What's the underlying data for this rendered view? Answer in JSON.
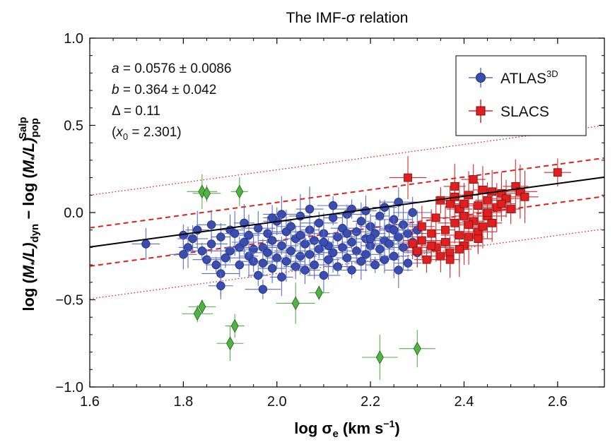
{
  "chart_data": {
    "type": "scatter",
    "title": "The IMF-σ relation",
    "xlabel": "log σ",
    "xlabel_sub": "e",
    "xlabel_unit_pre": " (km s",
    "xlabel_unit_sup": "−1",
    "xlabel_unit_post": ")",
    "ylabel_parts": {
      "log1": "log (",
      "m1": "M",
      "star1": "*",
      "l1": "/L)",
      "sub1": "dyn",
      "minus": " − log (",
      "m2": "M",
      "star2": "*",
      "l2": "/L)",
      "sub2": "pop",
      "sup2": "Salp"
    },
    "xlim": [
      1.6,
      2.7
    ],
    "ylim": [
      -1.0,
      1.0
    ],
    "xticks": [
      1.6,
      1.8,
      2.0,
      2.2,
      2.4,
      2.6
    ],
    "xtick_labels": [
      "1.6",
      "1.8",
      "2.0",
      "2.2",
      "2.4",
      "2.6"
    ],
    "yticks": [
      -1.0,
      -0.5,
      0.0,
      0.5,
      1.0
    ],
    "ytick_labels": [
      "−1.0",
      "−0.5",
      "0.0",
      "0.5",
      "1.0"
    ],
    "annotations": {
      "a_var": "a",
      "a_text": " = 0.0576 ± 0.0086",
      "b_var": "b",
      "b_text": " = 0.364 ± 0.042",
      "delta_text": "Δ = 0.11",
      "x0_open": "(",
      "x0_var": "x",
      "x0_sub": "0",
      "x0_text": " = 2.301)"
    },
    "fit": {
      "a": 0.0576,
      "b": 0.364,
      "x0": 2.301,
      "scatter": 0.11
    },
    "legend": {
      "placement": "top-right"
    },
    "colors": {
      "atlas": "#3b4eb0",
      "atlas_err": "#5a6dcc",
      "slacs": "#e02020",
      "slacs_err": "#d82828",
      "outlier": "#4fb443",
      "fit": "#000000",
      "band1": "#e02020",
      "band2": "#e02020"
    },
    "series": [
      {
        "name_main": "ATLAS",
        "name_sup": "3D",
        "marker": "circle",
        "points": [
          [
            1.72,
            -0.18
          ],
          [
            1.8,
            -0.13
          ],
          [
            1.8,
            -0.24
          ],
          [
            1.81,
            -0.2
          ],
          [
            1.82,
            -0.15
          ],
          [
            1.83,
            -0.1
          ],
          [
            1.84,
            -0.22
          ],
          [
            1.85,
            -0.27
          ],
          [
            1.86,
            -0.18
          ],
          [
            1.86,
            -0.07
          ],
          [
            1.87,
            -0.3
          ],
          [
            1.88,
            -0.35
          ],
          [
            1.88,
            -0.14
          ],
          [
            1.89,
            -0.26
          ],
          [
            1.9,
            -0.1
          ],
          [
            1.9,
            -0.22
          ],
          [
            1.91,
            -0.12
          ],
          [
            1.92,
            -0.2
          ],
          [
            1.92,
            -0.3
          ],
          [
            1.93,
            -0.06
          ],
          [
            1.93,
            -0.17
          ],
          [
            1.94,
            -0.25
          ],
          [
            1.94,
            -0.13
          ],
          [
            1.95,
            -0.28
          ],
          [
            1.95,
            -0.21
          ],
          [
            1.96,
            -0.09
          ],
          [
            1.96,
            -0.36
          ],
          [
            1.97,
            -0.2
          ],
          [
            1.97,
            -0.29
          ],
          [
            1.98,
            -0.12
          ],
          [
            1.98,
            -0.23
          ],
          [
            1.99,
            -0.32
          ],
          [
            1.99,
            -0.16
          ],
          [
            2.0,
            -0.05
          ],
          [
            2.0,
            -0.26
          ],
          [
            2.01,
            -0.19
          ],
          [
            2.01,
            -0.37
          ],
          [
            2.02,
            -0.11
          ],
          [
            2.02,
            -0.28
          ],
          [
            2.03,
            -0.22
          ],
          [
            2.03,
            -0.08
          ],
          [
            2.04,
            -0.31
          ],
          [
            2.04,
            -0.15
          ],
          [
            2.05,
            -0.25
          ],
          [
            2.05,
            -0.02
          ],
          [
            2.06,
            -0.18
          ],
          [
            2.06,
            -0.33
          ],
          [
            2.07,
            -0.1
          ],
          [
            2.07,
            -0.24
          ],
          [
            2.08,
            -0.3
          ],
          [
            2.08,
            -0.16
          ],
          [
            2.09,
            -0.06
          ],
          [
            2.09,
            -0.21
          ],
          [
            2.1,
            -0.36
          ],
          [
            2.1,
            -0.12
          ],
          [
            2.11,
            -0.27
          ],
          [
            2.11,
            -0.19
          ],
          [
            2.12,
            -0.03
          ],
          [
            2.12,
            -0.23
          ],
          [
            2.13,
            -0.14
          ],
          [
            2.13,
            -0.31
          ],
          [
            2.14,
            -0.09
          ],
          [
            2.14,
            -0.2
          ],
          [
            2.15,
            -0.26
          ],
          [
            2.15,
            -0.01
          ],
          [
            2.16,
            -0.17
          ],
          [
            2.16,
            -0.33
          ],
          [
            2.17,
            -0.11
          ],
          [
            2.17,
            -0.22
          ],
          [
            2.18,
            -0.05
          ],
          [
            2.18,
            -0.28
          ],
          [
            2.19,
            -0.15
          ],
          [
            2.19,
            -0.24
          ],
          [
            2.2,
            -0.08
          ],
          [
            2.2,
            -0.19
          ],
          [
            2.21,
            -0.3
          ],
          [
            2.21,
            -0.12
          ],
          [
            2.22,
            -0.02
          ],
          [
            2.22,
            -0.21
          ],
          [
            2.23,
            -0.16
          ],
          [
            2.23,
            -0.27
          ],
          [
            2.24,
            -0.09
          ],
          [
            2.24,
            -0.18
          ],
          [
            2.25,
            -0.04
          ],
          [
            2.25,
            -0.25
          ],
          [
            2.26,
            -0.14
          ],
          [
            2.26,
            -0.33
          ],
          [
            2.27,
            -0.07
          ],
          [
            2.27,
            -0.2
          ],
          [
            2.28,
            -0.12
          ],
          [
            2.28,
            -0.29
          ],
          [
            2.29,
            0.0
          ],
          [
            2.29,
            -0.17
          ],
          [
            2.3,
            -0.1
          ],
          [
            2.3,
            -0.23
          ],
          [
            2.01,
            -0.01
          ],
          [
            1.99,
            -0.03
          ],
          [
            2.07,
            0.02
          ],
          [
            2.12,
            0.04
          ],
          [
            2.16,
            0.02
          ],
          [
            2.19,
            0.01
          ],
          [
            2.23,
            0.03
          ],
          [
            2.26,
            0.06
          ],
          [
            2.05,
            -0.13
          ],
          [
            2.1,
            -0.17
          ],
          [
            2.15,
            -0.12
          ],
          [
            2.2,
            -0.15
          ],
          [
            2.25,
            -0.1
          ],
          [
            1.97,
            -0.44
          ],
          [
            1.88,
            -0.42
          ]
        ]
      },
      {
        "name_main": "SLACS",
        "marker": "square",
        "points": [
          [
            2.28,
            0.2
          ],
          [
            2.29,
            -0.18
          ],
          [
            2.3,
            -0.22
          ],
          [
            2.31,
            -0.08
          ],
          [
            2.32,
            -0.27
          ],
          [
            2.33,
            -0.12
          ],
          [
            2.34,
            -0.03
          ],
          [
            2.34,
            -0.2
          ],
          [
            2.35,
            -0.25
          ],
          [
            2.35,
            0.07
          ],
          [
            2.36,
            -0.1
          ],
          [
            2.36,
            -0.17
          ],
          [
            2.37,
            0.05
          ],
          [
            2.37,
            -0.23
          ],
          [
            2.38,
            -0.06
          ],
          [
            2.38,
            0.15
          ],
          [
            2.39,
            -0.13
          ],
          [
            2.39,
            0.02
          ],
          [
            2.4,
            -0.19
          ],
          [
            2.4,
            -0.02
          ],
          [
            2.41,
            0.1
          ],
          [
            2.41,
            -0.14
          ],
          [
            2.42,
            -0.05
          ],
          [
            2.42,
            0.19
          ],
          [
            2.43,
            -0.11
          ],
          [
            2.43,
            0.04
          ],
          [
            2.44,
            -0.08
          ],
          [
            2.44,
            0.13
          ],
          [
            2.45,
            -0.02
          ],
          [
            2.45,
            0.07
          ],
          [
            2.46,
            0.12
          ],
          [
            2.46,
            -0.06
          ],
          [
            2.47,
            0.03
          ],
          [
            2.48,
            0.11
          ],
          [
            2.49,
            0.08
          ],
          [
            2.5,
            0.02
          ],
          [
            2.51,
            0.15
          ],
          [
            2.52,
            0.12
          ],
          [
            2.53,
            0.09
          ],
          [
            2.6,
            0.23
          ],
          [
            2.31,
            -0.16
          ],
          [
            2.33,
            -0.19
          ],
          [
            2.37,
            -0.27
          ],
          [
            2.39,
            -0.21
          ],
          [
            2.41,
            -0.07
          ],
          [
            2.43,
            -0.15
          ],
          [
            2.45,
            0.0
          ],
          [
            2.48,
            0.05
          ],
          [
            2.4,
            0.05
          ],
          [
            2.38,
            0.09
          ]
        ]
      },
      {
        "name_main": "",
        "marker": "diamond",
        "points": [
          [
            1.84,
            0.12
          ],
          [
            1.85,
            0.11
          ],
          [
            1.92,
            0.12
          ],
          [
            1.84,
            -0.54
          ],
          [
            1.83,
            -0.58
          ],
          [
            1.91,
            -0.65
          ],
          [
            1.9,
            -0.75
          ],
          [
            2.04,
            -0.52
          ],
          [
            2.09,
            -0.46
          ],
          [
            2.22,
            -0.83
          ],
          [
            2.3,
            -0.78
          ]
        ]
      }
    ]
  }
}
